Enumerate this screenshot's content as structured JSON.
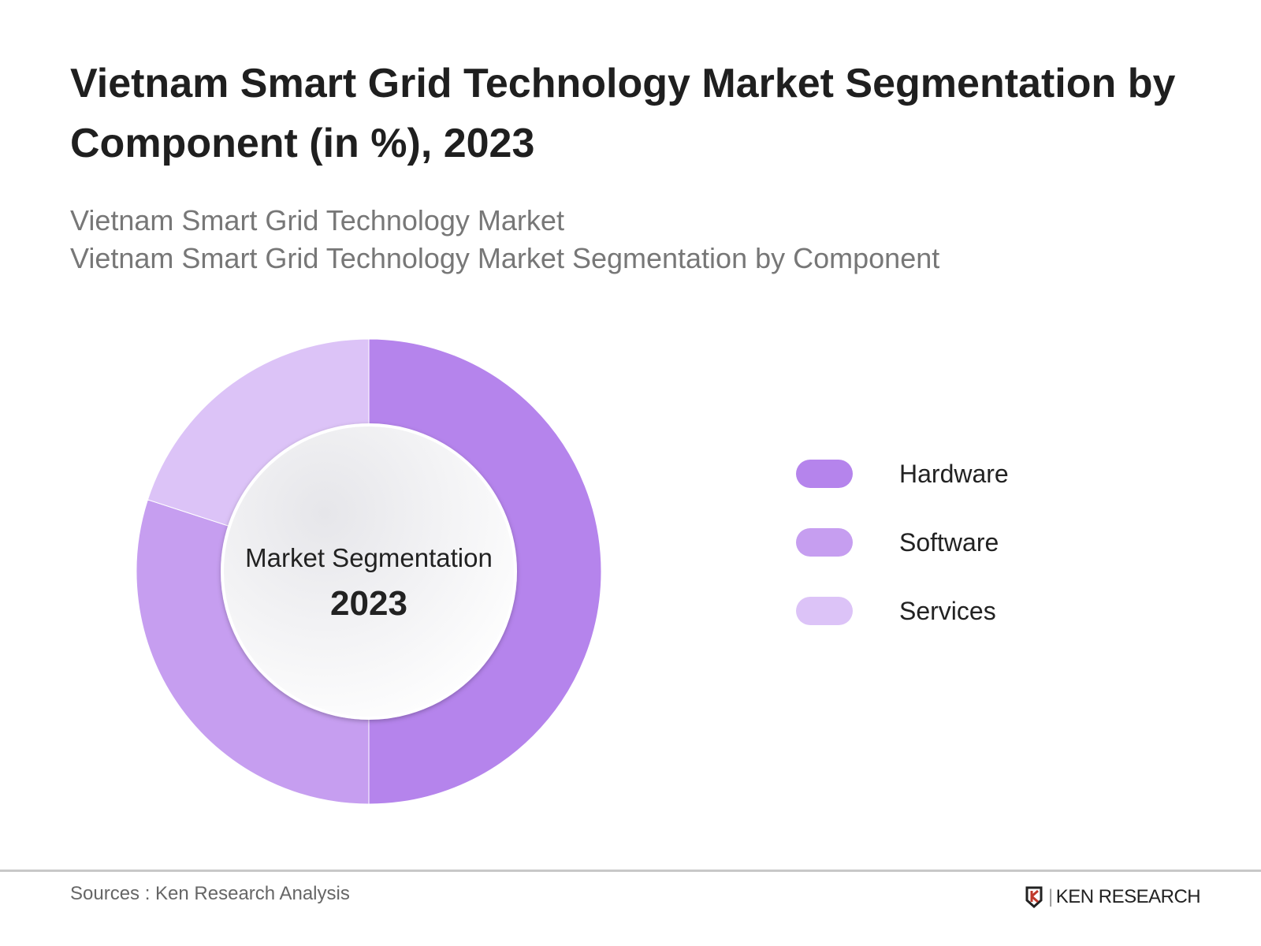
{
  "title": "Vietnam Smart Grid Technology Market Segmentation by Component (in %), 2023",
  "subtitle_lines": [
    "Vietnam Smart Grid Technology Market",
    "Vietnam Smart Grid Technology Market Segmentation by Component"
  ],
  "chart_data": {
    "type": "pie",
    "variant": "donut",
    "title": "Vietnam Smart Grid Technology Market Segmentation by Component (in %), 2023",
    "center_label": "Market Segmentation",
    "center_year": "2023",
    "categories": [
      "Hardware",
      "Software",
      "Services"
    ],
    "values": [
      50,
      30,
      20
    ],
    "colors": [
      "#b584ec",
      "#c69ef0",
      "#dcc3f7"
    ],
    "legend_position": "right",
    "data_labels": false
  },
  "footer": {
    "sources": "Sources : Ken Research Analysis",
    "logo_text": "KEN RESEARCH"
  }
}
